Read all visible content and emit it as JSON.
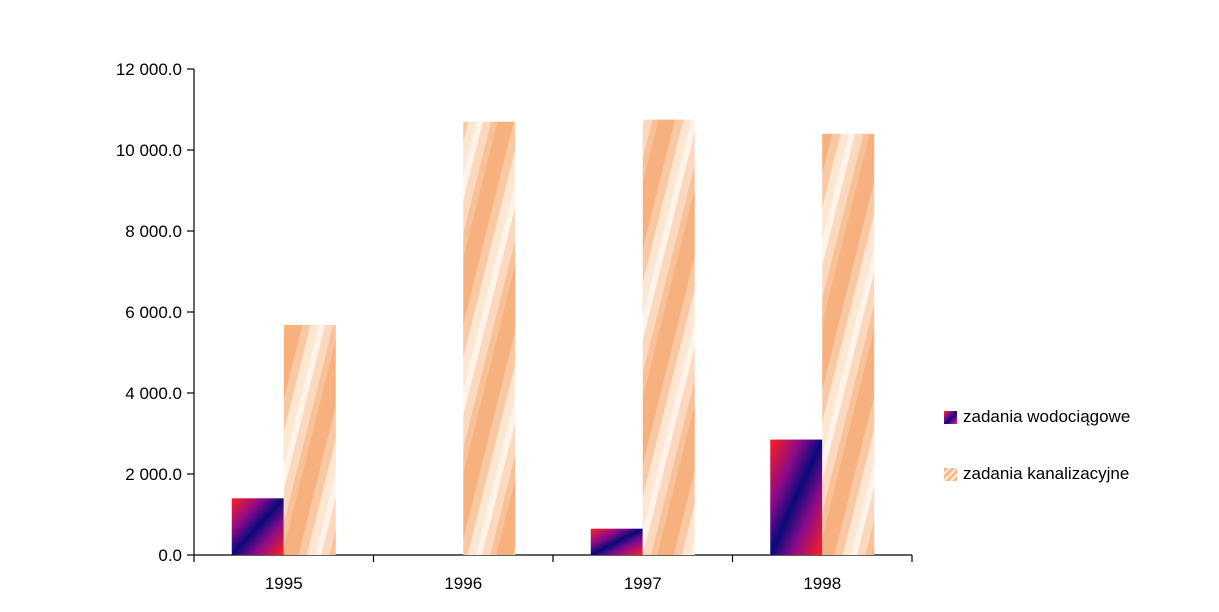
{
  "chart_data": {
    "type": "bar",
    "categories": [
      "1995",
      "1996",
      "1997",
      "1998"
    ],
    "series": [
      {
        "name": "zadania wodociągowe",
        "values": [
          1400,
          0,
          650,
          2850
        ],
        "color": "#3a0a7a"
      },
      {
        "name": "zadania kanalizacyjne",
        "values": [
          5680,
          10700,
          10750,
          10400
        ],
        "color": "#f7b98a"
      }
    ],
    "ylim": [
      0,
      12000
    ],
    "yticks": [
      0,
      2000,
      4000,
      6000,
      8000,
      10000,
      12000
    ],
    "ytick_labels": [
      "0.0",
      "2 000.0",
      "4 000.0",
      "6 000.0",
      "8 000.0",
      "10 000.0",
      "12 000.0"
    ],
    "title": "",
    "xlabel": "",
    "ylabel": "",
    "grid": false,
    "legend_position": "right"
  }
}
